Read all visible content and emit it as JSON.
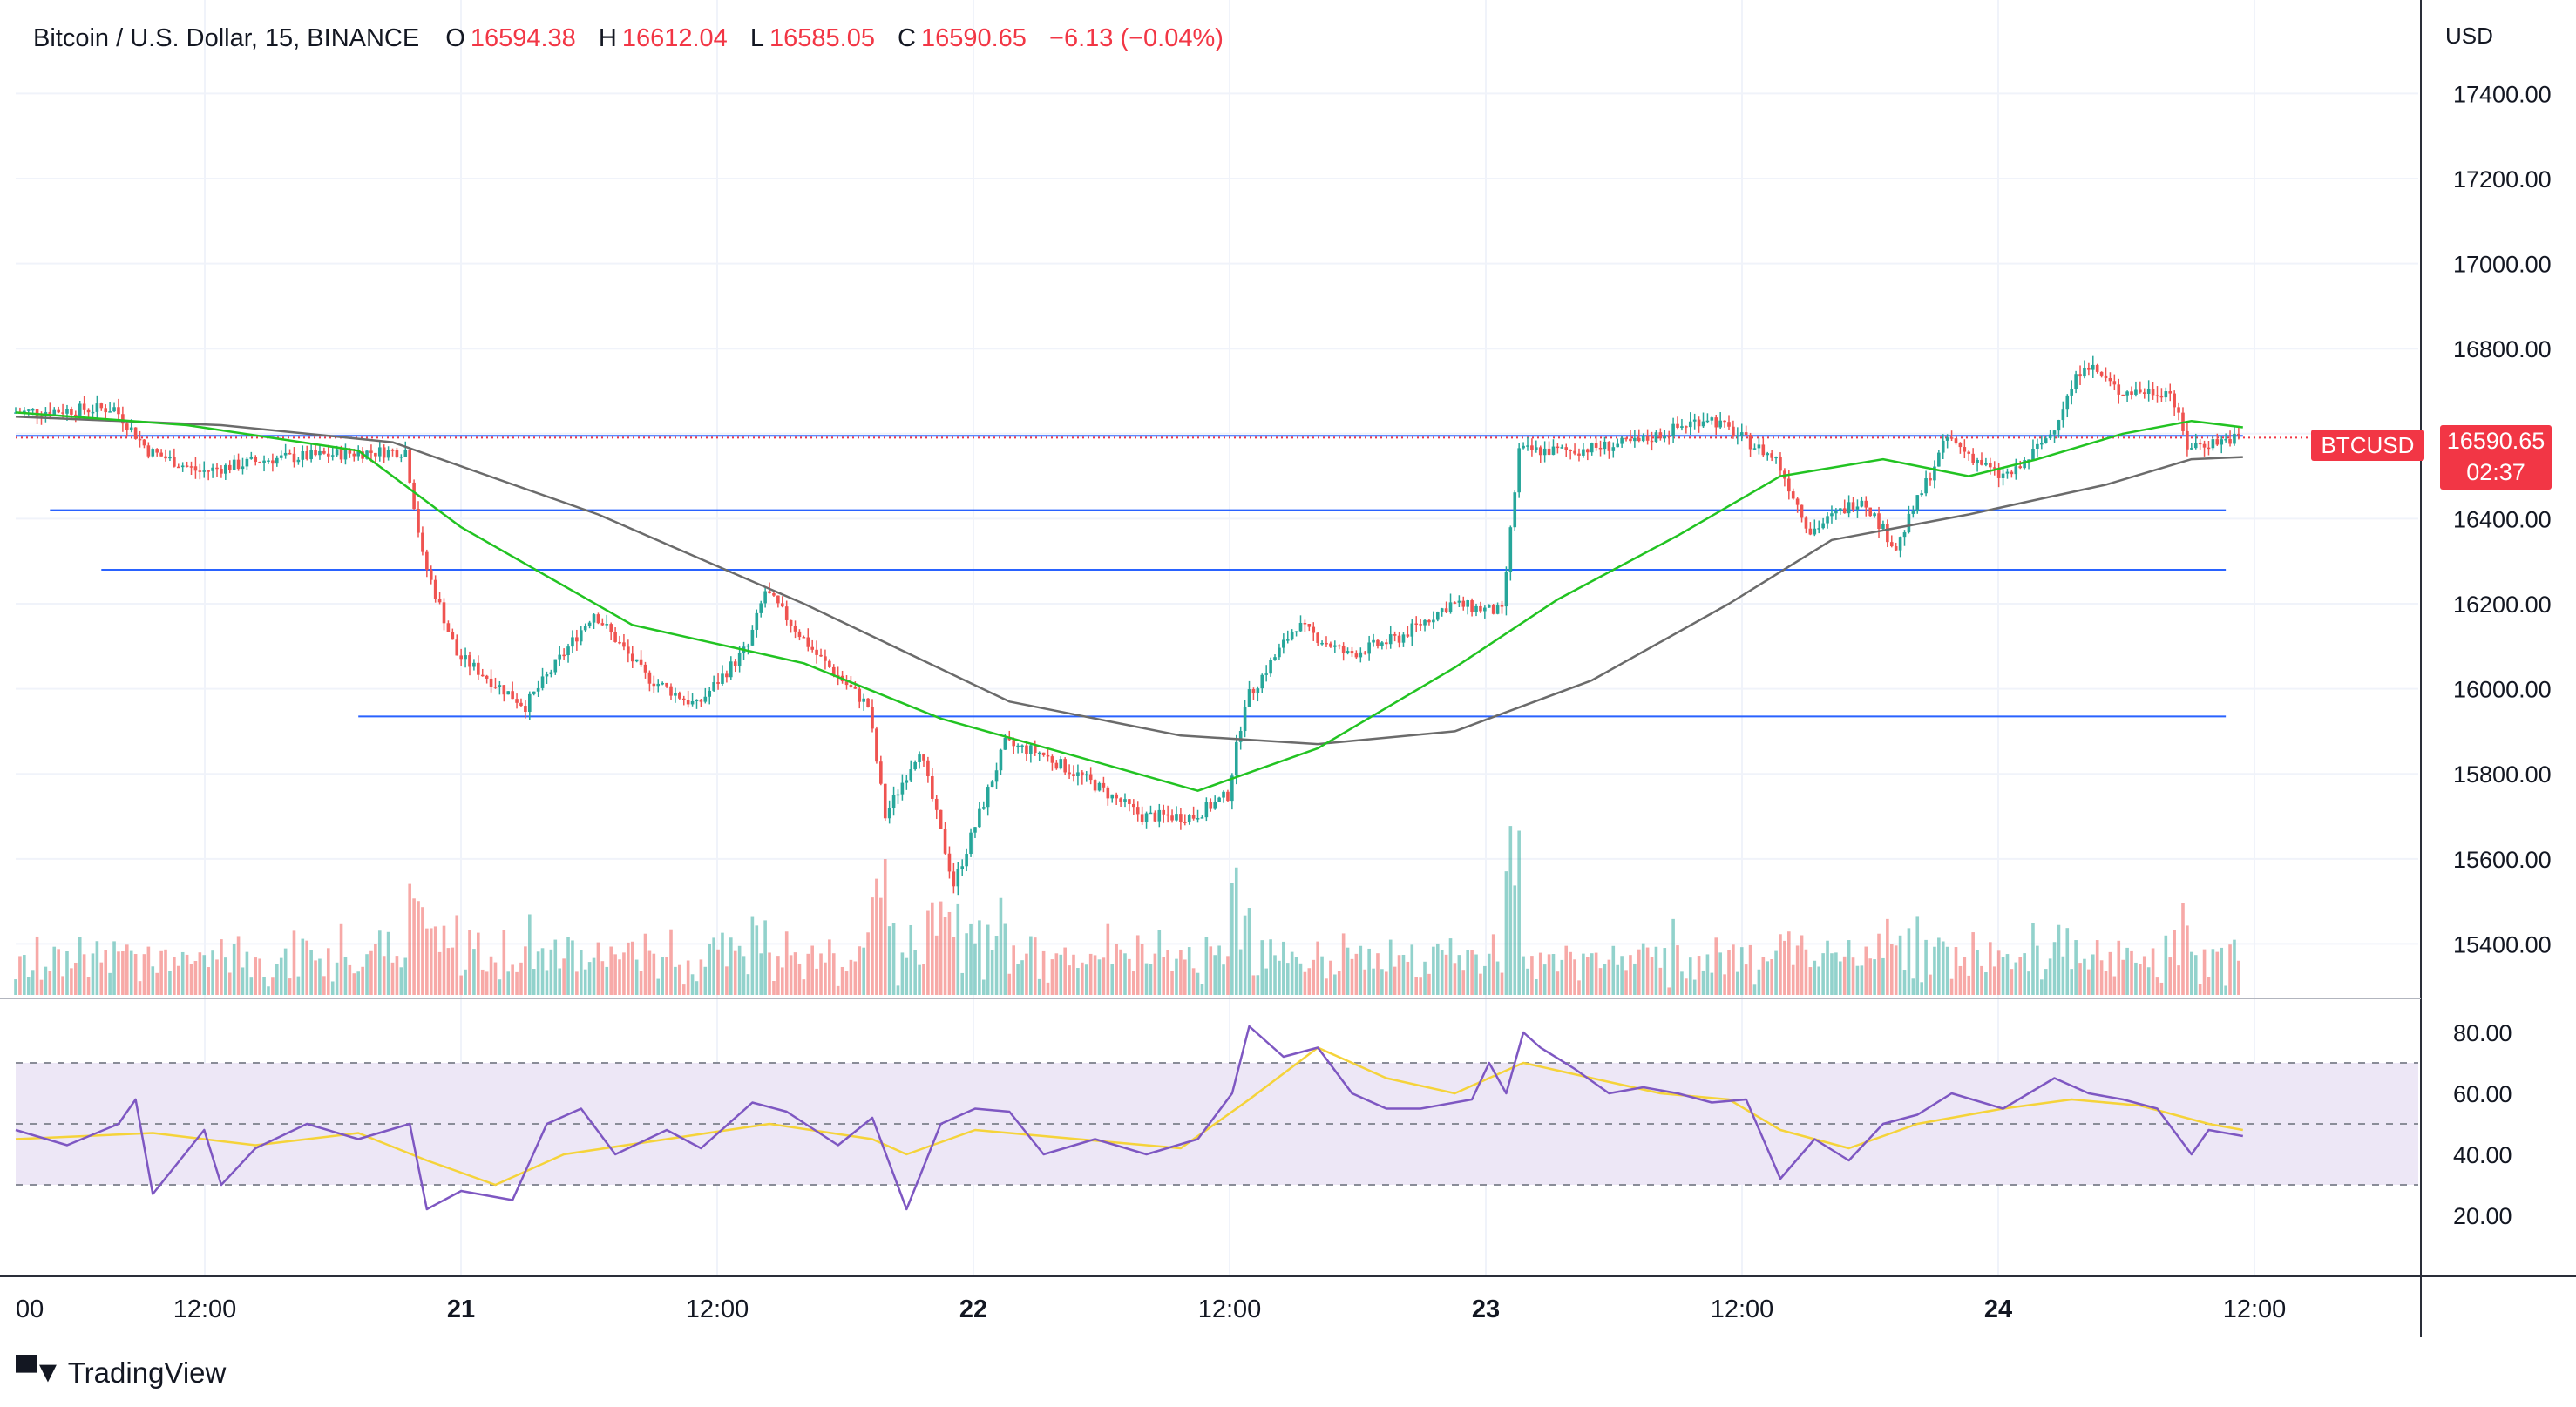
{
  "header": {
    "symbol": "Bitcoin / U.S. Dollar, 15, BINANCE",
    "open_label": "O",
    "open": "16594.38",
    "high_label": "H",
    "high": "16612.04",
    "low_label": "L",
    "low": "16585.05",
    "close_label": "C",
    "close": "16590.65",
    "change": "−6.13 (−0.04%)"
  },
  "axis": {
    "currency": "USD"
  },
  "price_tag": {
    "symbol": "BTCUSD",
    "price": "16590.65",
    "countdown": "02:37"
  },
  "brand": {
    "name": "TradingView"
  },
  "colors": {
    "up": "#26a69a",
    "down": "#ef5350",
    "ma_fast": "#22c322",
    "ma_slow": "#6b6b6b",
    "level": "#2962ff",
    "rsi": "#7e57c2",
    "rsi_ma": "#f5d33a",
    "rsi_band": "#ede7f6"
  },
  "chart_data": {
    "type": "candlestick",
    "price_axis": {
      "ticks": [
        "17400.00",
        "17200.00",
        "17000.00",
        "16800.00",
        "16600.00",
        "16400.00",
        "16200.00",
        "16000.00",
        "15800.00",
        "15600.00",
        "15400.00"
      ],
      "range": [
        15280,
        17620
      ]
    },
    "rsi_axis": {
      "ticks": [
        "80.00",
        "60.00",
        "40.00",
        "20.00"
      ],
      "range": [
        0,
        90
      ],
      "bands": [
        30,
        70
      ]
    },
    "time_axis": {
      "labels": [
        "00",
        "12:00",
        "21",
        "12:00",
        "22",
        "12:00",
        "23",
        "12:00",
        "24",
        "12:00"
      ]
    },
    "horizontal_levels": [
      {
        "price": 16595,
        "from_hour": 0,
        "to_hour": 130
      },
      {
        "price": 16420,
        "from_hour": 2,
        "to_hour": 129
      },
      {
        "price": 16280,
        "from_hour": 5,
        "to_hour": 129
      },
      {
        "price": 15935,
        "from_hour": 20,
        "to_hour": 129
      }
    ],
    "price_path": [
      [
        0,
        16650
      ],
      [
        6,
        16660
      ],
      [
        8,
        16560
      ],
      [
        11,
        16510
      ],
      [
        15,
        16540
      ],
      [
        20,
        16555
      ],
      [
        23,
        16560
      ],
      [
        24,
        16310
      ],
      [
        26,
        16080
      ],
      [
        30,
        15960
      ],
      [
        34,
        16180
      ],
      [
        37,
        16030
      ],
      [
        40,
        15960
      ],
      [
        43,
        16100
      ],
      [
        44,
        16230
      ],
      [
        47,
        16080
      ],
      [
        50,
        15960
      ],
      [
        51,
        15700
      ],
      [
        53,
        15860
      ],
      [
        55,
        15540
      ],
      [
        58,
        15870
      ],
      [
        60,
        15850
      ],
      [
        63,
        15780
      ],
      [
        66,
        15700
      ],
      [
        69,
        15700
      ],
      [
        71,
        15750
      ],
      [
        72,
        15970
      ],
      [
        75,
        16150
      ],
      [
        78,
        16080
      ],
      [
        81,
        16120
      ],
      [
        84,
        16200
      ],
      [
        87,
        16180
      ],
      [
        88,
        16560
      ],
      [
        91,
        16560
      ],
      [
        95,
        16580
      ],
      [
        99,
        16640
      ],
      [
        103,
        16540
      ],
      [
        105,
        16370
      ],
      [
        108,
        16450
      ],
      [
        110,
        16330
      ],
      [
        111,
        16420
      ],
      [
        113,
        16590
      ],
      [
        116,
        16500
      ],
      [
        117,
        16510
      ],
      [
        119,
        16600
      ],
      [
        121,
        16770
      ],
      [
        123,
        16700
      ],
      [
        126,
        16700
      ],
      [
        127,
        16570
      ],
      [
        130,
        16591
      ]
    ],
    "ma_fast_path": [
      [
        0,
        16650
      ],
      [
        10,
        16620
      ],
      [
        20,
        16560
      ],
      [
        26,
        16380
      ],
      [
        36,
        16150
      ],
      [
        46,
        16060
      ],
      [
        54,
        15930
      ],
      [
        62,
        15840
      ],
      [
        69,
        15760
      ],
      [
        76,
        15860
      ],
      [
        84,
        16050
      ],
      [
        90,
        16210
      ],
      [
        97,
        16360
      ],
      [
        103,
        16500
      ],
      [
        109,
        16540
      ],
      [
        114,
        16500
      ],
      [
        118,
        16540
      ],
      [
        123,
        16600
      ],
      [
        127,
        16630
      ],
      [
        130,
        16615
      ]
    ],
    "ma_slow_path": [
      [
        0,
        16640
      ],
      [
        12,
        16620
      ],
      [
        22,
        16580
      ],
      [
        34,
        16410
      ],
      [
        46,
        16200
      ],
      [
        58,
        15970
      ],
      [
        68,
        15890
      ],
      [
        76,
        15870
      ],
      [
        84,
        15900
      ],
      [
        92,
        16020
      ],
      [
        100,
        16200
      ],
      [
        106,
        16350
      ],
      [
        114,
        16410
      ],
      [
        122,
        16480
      ],
      [
        127,
        16540
      ],
      [
        130,
        16545
      ]
    ],
    "rsi_path": [
      [
        0,
        48
      ],
      [
        3,
        43
      ],
      [
        6,
        50
      ],
      [
        7,
        58
      ],
      [
        8,
        27
      ],
      [
        11,
        48
      ],
      [
        12,
        30
      ],
      [
        14,
        42
      ],
      [
        17,
        50
      ],
      [
        20,
        45
      ],
      [
        23,
        50
      ],
      [
        24,
        22
      ],
      [
        26,
        28
      ],
      [
        29,
        25
      ],
      [
        31,
        50
      ],
      [
        33,
        55
      ],
      [
        35,
        40
      ],
      [
        38,
        48
      ],
      [
        40,
        42
      ],
      [
        43,
        57
      ],
      [
        45,
        54
      ],
      [
        48,
        43
      ],
      [
        50,
        52
      ],
      [
        52,
        22
      ],
      [
        54,
        50
      ],
      [
        56,
        55
      ],
      [
        58,
        54
      ],
      [
        60,
        40
      ],
      [
        63,
        45
      ],
      [
        66,
        40
      ],
      [
        69,
        45
      ],
      [
        71,
        60
      ],
      [
        72,
        82
      ],
      [
        74,
        72
      ],
      [
        76,
        75
      ],
      [
        78,
        60
      ],
      [
        80,
        55
      ],
      [
        82,
        55
      ],
      [
        85,
        58
      ],
      [
        86,
        70
      ],
      [
        87,
        60
      ],
      [
        88,
        80
      ],
      [
        89,
        75
      ],
      [
        91,
        68
      ],
      [
        93,
        60
      ],
      [
        95,
        62
      ],
      [
        97,
        60
      ],
      [
        99,
        57
      ],
      [
        101,
        58
      ],
      [
        103,
        32
      ],
      [
        105,
        45
      ],
      [
        107,
        38
      ],
      [
        109,
        50
      ],
      [
        111,
        53
      ],
      [
        113,
        60
      ],
      [
        116,
        55
      ],
      [
        119,
        65
      ],
      [
        121,
        60
      ],
      [
        123,
        58
      ],
      [
        125,
        55
      ],
      [
        127,
        40
      ],
      [
        128,
        48
      ],
      [
        130,
        46
      ]
    ],
    "rsi_ma_path": [
      [
        0,
        45
      ],
      [
        8,
        47
      ],
      [
        14,
        43
      ],
      [
        20,
        47
      ],
      [
        24,
        38
      ],
      [
        28,
        30
      ],
      [
        32,
        40
      ],
      [
        38,
        45
      ],
      [
        44,
        50
      ],
      [
        50,
        45
      ],
      [
        52,
        40
      ],
      [
        56,
        48
      ],
      [
        60,
        46
      ],
      [
        64,
        44
      ],
      [
        68,
        42
      ],
      [
        72,
        58
      ],
      [
        76,
        75
      ],
      [
        80,
        65
      ],
      [
        84,
        60
      ],
      [
        88,
        70
      ],
      [
        92,
        65
      ],
      [
        96,
        60
      ],
      [
        100,
        58
      ],
      [
        103,
        48
      ],
      [
        107,
        42
      ],
      [
        111,
        50
      ],
      [
        116,
        55
      ],
      [
        120,
        58
      ],
      [
        124,
        56
      ],
      [
        128,
        50
      ],
      [
        130,
        48
      ]
    ]
  }
}
